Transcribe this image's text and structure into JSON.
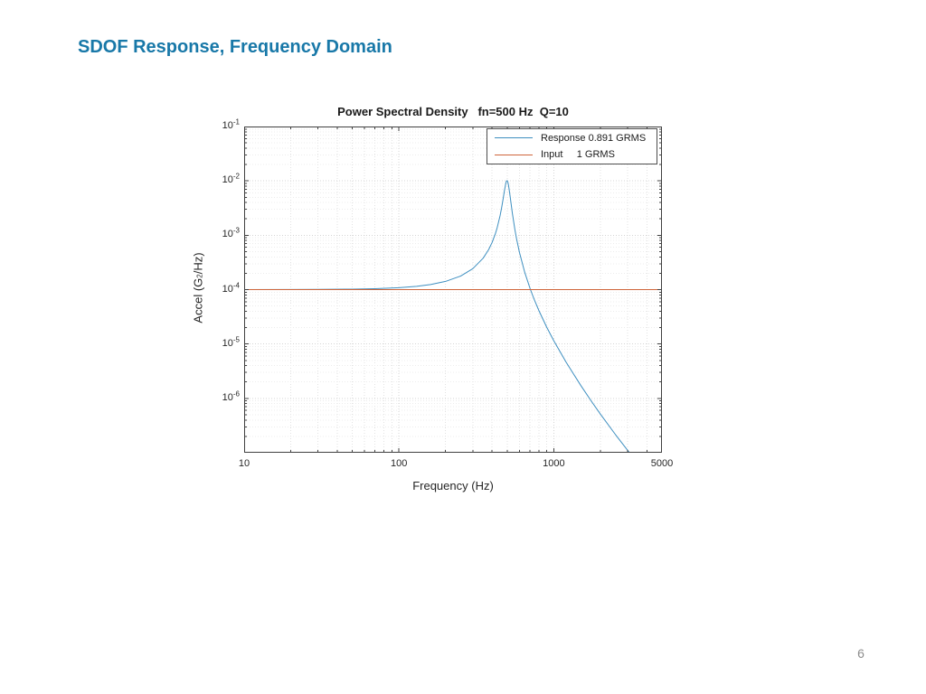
{
  "page": {
    "title": "SDOF Response, Frequency Domain",
    "title_color": "#1878A8",
    "page_number": "6"
  },
  "chart_data": {
    "type": "line",
    "title": "Power Spectral Density   fn=500 Hz  Q=10",
    "xlabel": "Frequency (Hz)",
    "ylabel": {
      "prefix": "Accel (G",
      "sup": "2",
      "suffix": "/Hz)"
    },
    "x_scale": "log",
    "y_scale": "log",
    "xlim": [
      10,
      5000
    ],
    "ylim": [
      1e-07,
      0.1
    ],
    "grid": {
      "major": true,
      "minor": true
    },
    "x_ticks": [
      {
        "label": "10",
        "value": 10
      },
      {
        "label": "100",
        "value": 100
      },
      {
        "label": "1000",
        "value": 1000
      },
      {
        "label": "5000",
        "value": 5000
      }
    ],
    "y_ticks": [
      {
        "base": "10",
        "exp": "-1",
        "value": 0.1
      },
      {
        "base": "10",
        "exp": "-2",
        "value": 0.01
      },
      {
        "base": "10",
        "exp": "-3",
        "value": 0.001
      },
      {
        "base": "10",
        "exp": "-4",
        "value": 0.0001
      },
      {
        "base": "10",
        "exp": "-5",
        "value": 1e-05
      },
      {
        "base": "10",
        "exp": "-6",
        "value": 1e-06
      }
    ],
    "model": {
      "fn_hz": 500,
      "Q": 10,
      "input_psd_g2hz": 0.0001
    },
    "legend": {
      "position": "northeast",
      "entries": [
        {
          "label": "Response 0.891 GRMS",
          "color": "#3E8FC0"
        },
        {
          "label": "Input     1 GRMS",
          "color": "#CE653B"
        }
      ]
    },
    "series": [
      {
        "name": "Response",
        "rms_grms": 0.891,
        "color": "#3E8FC0",
        "x": [
          10,
          20,
          30,
          50,
          70,
          100,
          130,
          160,
          200,
          250,
          300,
          350,
          380,
          400,
          420,
          430,
          450,
          460,
          470,
          480,
          490,
          495,
          500,
          505,
          510,
          520,
          540,
          560,
          575,
          600,
          650,
          707,
          750,
          800,
          900,
          1000,
          1200,
          1500,
          1750,
          2000,
          2500,
          3000,
          3100
        ],
        "y": [
          0.00010008,
          0.00010032,
          0.00010072,
          0.00010204,
          0.00010408,
          0.0001085,
          0.000115,
          0.0001242,
          0.0001416,
          0.0001774,
          0.0002428,
          0.0003792,
          0.000546,
          0.00074,
          0.001075,
          0.00134,
          0.002283,
          0.003146,
          0.004507,
          0.00657,
          0.00904,
          0.0099,
          0.0101,
          0.00953,
          0.0084,
          0.00578,
          0.002571,
          0.001311,
          0.000864,
          0.0004877,
          0.0002063,
          0.0001,
          6.45e-05,
          4.17e-05,
          2.044e-05,
          1.15e-05,
          4.656e-06,
          1.701e-06,
          8.86e-07,
          5.15e-07,
          2.17e-07,
          1.11e-07,
          9.87e-08
        ]
      },
      {
        "name": "Input",
        "rms_grms": 1,
        "color": "#CE653B",
        "x": [
          10,
          5000
        ],
        "y": [
          0.0001,
          0.0001
        ]
      }
    ]
  }
}
